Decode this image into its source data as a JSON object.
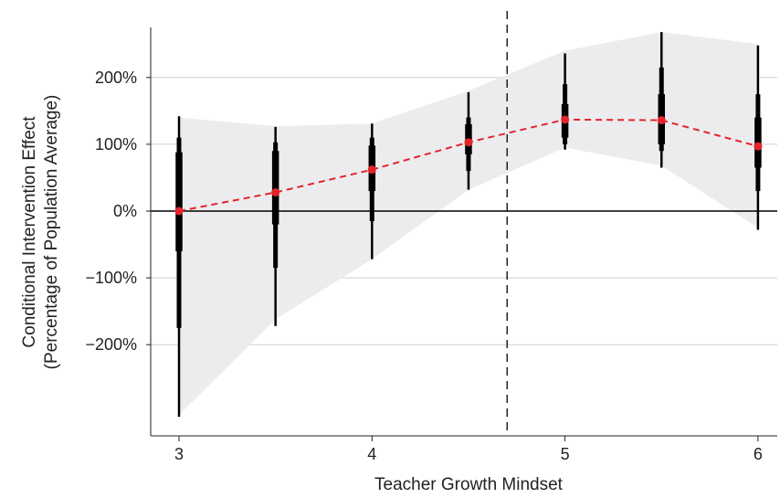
{
  "chart_data": {
    "type": "line",
    "title": "",
    "xlabel": "Teacher Growth Mindset",
    "ylabel_lines": [
      "Conditional Intervention Effect",
      "(Percentage of Population Average)"
    ],
    "xlim": [
      2.85,
      6.08
    ],
    "ylim": [
      -310,
      265
    ],
    "x_ticks": [
      3,
      4,
      5,
      6
    ],
    "x_tick_labels": [
      "3",
      "4",
      "5",
      "6"
    ],
    "y_ticks": [
      200,
      100,
      0,
      -100,
      -200
    ],
    "y_tick_labels": [
      "200%",
      "100%",
      "0%",
      "−100%",
      "−200%"
    ],
    "grid": "horizontal",
    "zero_line": true,
    "reference_line_x": 4.7,
    "band": {
      "x": [
        3,
        3.5,
        4,
        4.5,
        5,
        5.5,
        6
      ],
      "upper": [
        140,
        127,
        131,
        180,
        240,
        268,
        250
      ],
      "lower": [
        -305,
        -162,
        -72,
        32,
        95,
        68,
        -25
      ]
    },
    "series": [
      {
        "x": [
          3,
          3.5,
          4,
          4.5,
          5,
          5.5,
          6
        ],
        "y": [
          0,
          28,
          62,
          103,
          137,
          136,
          97
        ],
        "outer_interval": [
          [
            -308,
            142
          ],
          [
            -172,
            126
          ],
          [
            -72,
            131
          ],
          [
            32,
            178
          ],
          [
            92,
            236
          ],
          [
            65,
            268
          ],
          [
            -28,
            248
          ]
        ],
        "middle_interval": [
          [
            -175,
            110
          ],
          [
            -85,
            103
          ],
          [
            -15,
            110
          ],
          [
            60,
            140
          ],
          [
            100,
            190
          ],
          [
            90,
            215
          ],
          [
            30,
            175
          ]
        ],
        "inner_interval": [
          [
            -60,
            88
          ],
          [
            -20,
            90
          ],
          [
            30,
            98
          ],
          [
            85,
            130
          ],
          [
            110,
            160
          ],
          [
            100,
            175
          ],
          [
            65,
            140
          ]
        ]
      }
    ],
    "colors": {
      "band": "#ececee",
      "line": "#e3242b",
      "interval": "#000000",
      "grid": "#cfcfcf",
      "zero_line": "#000000",
      "reference_line": "#000000"
    }
  }
}
